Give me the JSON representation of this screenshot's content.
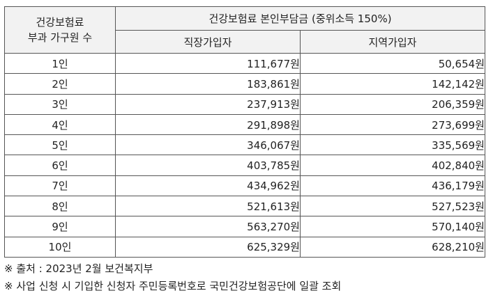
{
  "header": {
    "col0_line1": "건강보험료",
    "col0_line2": "부과 가구원 수",
    "group_title": "건강보험료 본인부담금 (중위소득 150%)",
    "col1": "직장가입자",
    "col2": "지역가입자"
  },
  "rows": [
    {
      "members": "1인",
      "employee": "111,677원",
      "regional": "50,654원"
    },
    {
      "members": "2인",
      "employee": "183,861원",
      "regional": "142,142원"
    },
    {
      "members": "3인",
      "employee": "237,913원",
      "regional": "206,359원"
    },
    {
      "members": "4인",
      "employee": "291,898원",
      "regional": "273,699원"
    },
    {
      "members": "5인",
      "employee": "346,067원",
      "regional": "335,569원"
    },
    {
      "members": "6인",
      "employee": "403,785원",
      "regional": "402,840원"
    },
    {
      "members": "7인",
      "employee": "434,962원",
      "regional": "436,179원"
    },
    {
      "members": "8인",
      "employee": "521,613원",
      "regional": "527,523원"
    },
    {
      "members": "9인",
      "employee": "563,270원",
      "regional": "570,140원"
    },
    {
      "members": "10인",
      "employee": "625,329원",
      "regional": "628,210원"
    }
  ],
  "notes": [
    "※ 출처 : 2023년 2월 보건복지부",
    "※ 사업 신청 시 기입한 신청자 주민등록번호로 국민건강보험공단에 일괄 조회"
  ]
}
